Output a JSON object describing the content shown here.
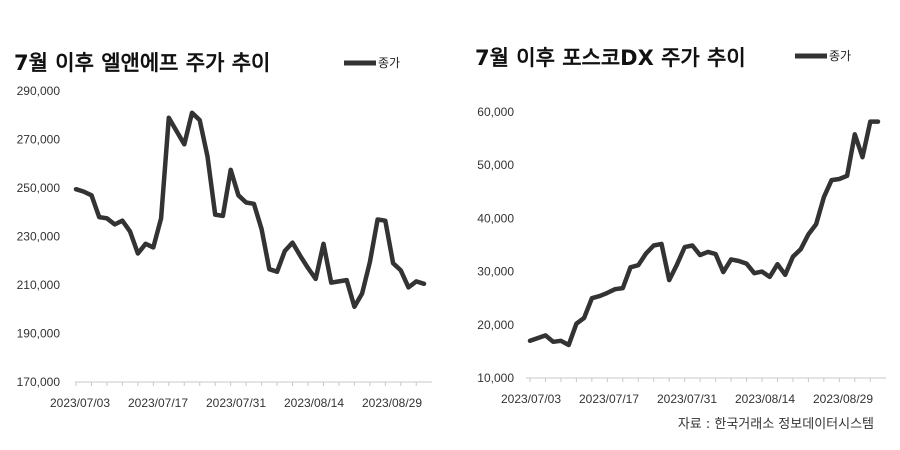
{
  "chart_data": [
    {
      "type": "line",
      "title": "7월 이후 엘앤에프 주가 추이",
      "legend": {
        "label": "종가",
        "position": "top-right"
      },
      "xlabel": "",
      "ylabel": "",
      "ylim": [
        170000,
        290000
      ],
      "yticks": [
        "290,000",
        "270,000",
        "250,000",
        "230,000",
        "210,000",
        "190,000",
        "170,000"
      ],
      "xticks": [
        "2023/07/03",
        "2023/07/17",
        "2023/07/31",
        "2023/08/14",
        "2023/08/29"
      ],
      "grid": false,
      "color": "#333333",
      "series": [
        {
          "name": "종가",
          "values": [
            249500,
            248500,
            247000,
            238000,
            237500,
            235000,
            236500,
            232000,
            223000,
            227000,
            225500,
            237500,
            279000,
            273500,
            268000,
            281000,
            278000,
            263000,
            239000,
            238500,
            257500,
            247000,
            244000,
            243500,
            233000,
            216500,
            215500,
            224000,
            227500,
            222000,
            217000,
            212500,
            227000,
            211000,
            211500,
            212000,
            201000,
            206500,
            219500,
            237000,
            236500,
            219000,
            216000,
            209000,
            211500,
            210500
          ]
        }
      ]
    },
    {
      "type": "line",
      "title": "7월 이후 포스코DX 주가 추이",
      "legend": {
        "label": "종가",
        "position": "top-right"
      },
      "xlabel": "",
      "ylabel": "",
      "ylim": [
        10000,
        60000
      ],
      "yticks": [
        "60,000",
        "50,000",
        "40,000",
        "30,000",
        "20,000",
        "10,000"
      ],
      "xticks": [
        "2023/07/03",
        "2023/07/17",
        "2023/07/31",
        "2023/08/14",
        "2023/08/29"
      ],
      "grid": false,
      "color": "#333333",
      "series": [
        {
          "name": "종가",
          "values": [
            17000,
            17500,
            18000,
            16800,
            17000,
            16200,
            20200,
            21300,
            25000,
            25400,
            26000,
            26700,
            26900,
            30800,
            31200,
            33400,
            34900,
            35200,
            28400,
            31300,
            34600,
            34900,
            33100,
            33700,
            33300,
            29900,
            32300,
            32000,
            31500,
            29700,
            30000,
            29000,
            31400,
            29400,
            32800,
            34200,
            37000,
            38900,
            44000,
            47200,
            47400,
            48000,
            55800,
            51500,
            58200,
            58200
          ]
        }
      ]
    }
  ],
  "source": "자료 : 한국거래소 정보데이터시스템"
}
